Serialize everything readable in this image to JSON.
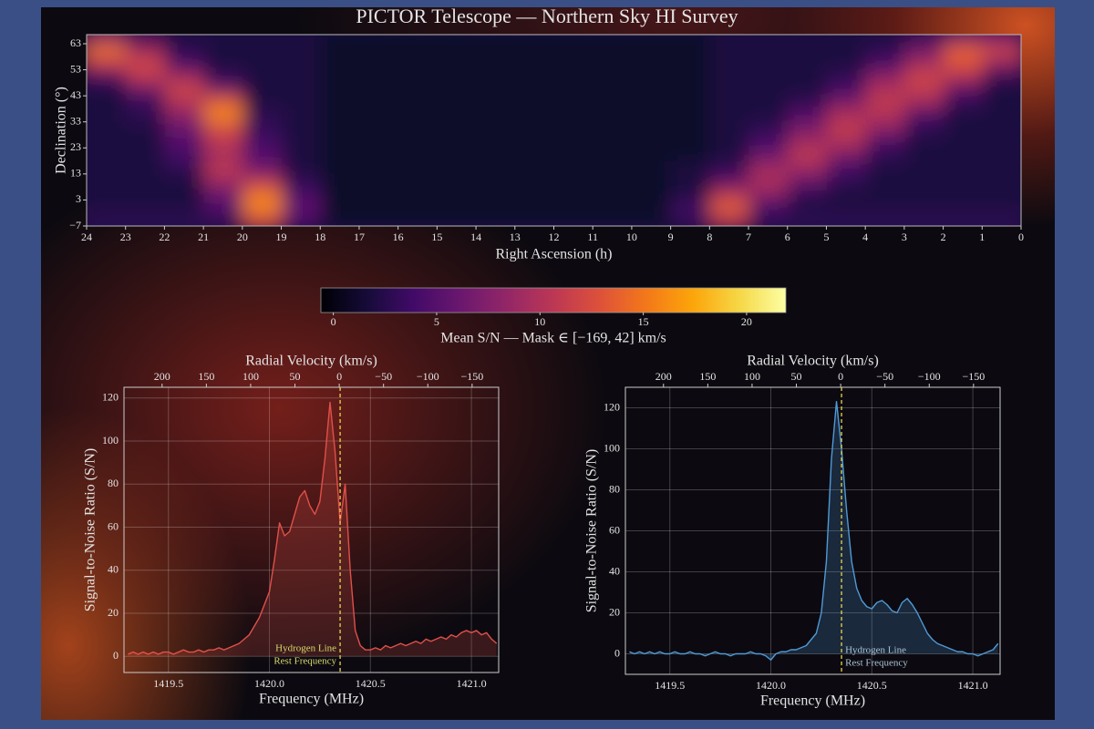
{
  "chart_data": [
    {
      "type": "heatmap",
      "title": "PICTOR Telescope — Northern Sky HI Survey",
      "x_label": "Right Ascension (h)",
      "y_label": "Declination (°)",
      "xlim": [
        24,
        0
      ],
      "xticks": [
        24,
        23,
        22,
        21,
        20,
        19,
        18,
        17,
        16,
        15,
        14,
        13,
        12,
        11,
        10,
        9,
        8,
        7,
        6,
        5,
        4,
        3,
        2,
        1,
        0
      ],
      "ylim": [
        -7,
        66.5
      ],
      "yticks": [
        {
          "value": -7,
          "label": "−7"
        },
        3,
        13,
        23,
        33,
        43,
        53,
        63
      ],
      "x": [
        0.5,
        1.5,
        2.5,
        3.5,
        4.5,
        5.5,
        6.5,
        7.5,
        8.5,
        9.5,
        10.5,
        11.5,
        12.5,
        13.5,
        14.5,
        15.5,
        16.5,
        17.5,
        18.5,
        19.5,
        20.5,
        21.5,
        22.5,
        23.5
      ],
      "y": [
        -4.5,
        0.5,
        5.5,
        10.5,
        15.5,
        20.5,
        25.5,
        30.5,
        35.5,
        40.5,
        45.5,
        50.5,
        55.5,
        60.5,
        65.5
      ],
      "values": [
        [
          3,
          3,
          3,
          3,
          3,
          3,
          3,
          10,
          3,
          1,
          1,
          1,
          1,
          1,
          1,
          1,
          1,
          1,
          4,
          12,
          3,
          3,
          3,
          3
        ],
        [
          2,
          2,
          2,
          2,
          2,
          2,
          4,
          14,
          4,
          1,
          1,
          1,
          1,
          1,
          1,
          1,
          1,
          1,
          6,
          16,
          5,
          2,
          2,
          2
        ],
        [
          2,
          2,
          2,
          2,
          2,
          3,
          8,
          10,
          2,
          1,
          1,
          1,
          1,
          1,
          1,
          1,
          1,
          1,
          4,
          15,
          6,
          2,
          2,
          2
        ],
        [
          2,
          2,
          2,
          2,
          3,
          6,
          10,
          5,
          2,
          1,
          1,
          1,
          1,
          1,
          1,
          1,
          1,
          1,
          3,
          10,
          9,
          2,
          2,
          2
        ],
        [
          2,
          2,
          2,
          2,
          4,
          9,
          9,
          3,
          2,
          1,
          1,
          1,
          1,
          1,
          1,
          1,
          1,
          1,
          2,
          6,
          11,
          3,
          2,
          2
        ],
        [
          2,
          2,
          2,
          3,
          7,
          11,
          6,
          2,
          1,
          1,
          1,
          1,
          1,
          1,
          1,
          1,
          1,
          1,
          2,
          5,
          9,
          4,
          2,
          2
        ],
        [
          2,
          2,
          2,
          4,
          10,
          9,
          4,
          2,
          1,
          1,
          1,
          1,
          1,
          1,
          1,
          1,
          1,
          1,
          2,
          4,
          11,
          5,
          2,
          2
        ],
        [
          2,
          2,
          3,
          8,
          11,
          7,
          3,
          2,
          1,
          1,
          1,
          1,
          1,
          1,
          1,
          1,
          1,
          1,
          2,
          3,
          12,
          6,
          2,
          2
        ],
        [
          2,
          2,
          4,
          10,
          10,
          5,
          2,
          2,
          1,
          1,
          1,
          1,
          1,
          1,
          1,
          1,
          1,
          1,
          2,
          3,
          16,
          8,
          3,
          2
        ],
        [
          2,
          3,
          9,
          11,
          7,
          3,
          2,
          2,
          1,
          1,
          1,
          1,
          1,
          1,
          1,
          1,
          1,
          1,
          2,
          2,
          14,
          10,
          3,
          2
        ],
        [
          2,
          5,
          11,
          10,
          4,
          2,
          2,
          2,
          1,
          1,
          1,
          1,
          1,
          1,
          1,
          1,
          1,
          1,
          2,
          2,
          6,
          12,
          6,
          2
        ],
        [
          3,
          10,
          12,
          8,
          3,
          2,
          2,
          2,
          1,
          1,
          1,
          1,
          1,
          1,
          1,
          1,
          1,
          1,
          2,
          2,
          3,
          9,
          11,
          4
        ],
        [
          8,
          13,
          9,
          4,
          2,
          2,
          2,
          2,
          1,
          1,
          1,
          1,
          1,
          1,
          1,
          1,
          1,
          1,
          2,
          2,
          2,
          4,
          12,
          11
        ],
        [
          12,
          14,
          7,
          3,
          2,
          2,
          2,
          2,
          1,
          1,
          1,
          1,
          1,
          1,
          1,
          1,
          1,
          1,
          2,
          2,
          2,
          3,
          9,
          15
        ],
        [
          6,
          6,
          3,
          2,
          2,
          2,
          2,
          2,
          1,
          1,
          1,
          1,
          1,
          1,
          1,
          1,
          1,
          1,
          2,
          2,
          2,
          2,
          3,
          7
        ]
      ],
      "colormap": "inferno",
      "colorbar": {
        "label": "Mean S/N — Mask ∈ [−169, 42] km/s",
        "lim": [
          -0.6,
          21.9
        ],
        "ticks": [
          0,
          5,
          10,
          15,
          20
        ]
      }
    },
    {
      "type": "line",
      "x_label": "Frequency (MHz)",
      "y_label": "Signal-to-Noise Ratio (S/N)",
      "x2_label": "Radial Velocity (km/s)",
      "xlim": [
        1419.28,
        1421.135
      ],
      "xticks": [
        1419.5,
        {
          "value": 1420,
          "label": "1420.0"
        },
        1420.5,
        {
          "value": 1421,
          "label": "1421.0"
        }
      ],
      "x2lim": [
        243,
        -180
      ],
      "x2ticks": [
        200,
        150,
        100,
        50,
        0,
        {
          "value": -50,
          "label": "−50"
        },
        {
          "value": -100,
          "label": "−100"
        },
        {
          "value": -150,
          "label": "−150"
        }
      ],
      "ylim": [
        -7.5,
        125
      ],
      "yticks": [
        0,
        20,
        40,
        60,
        80,
        100,
        120
      ],
      "grid": true,
      "fill": true,
      "color": "#e0504a",
      "x": [
        1419.3,
        1419.325,
        1419.35,
        1419.375,
        1419.4,
        1419.425,
        1419.45,
        1419.475,
        1419.5,
        1419.525,
        1419.55,
        1419.575,
        1419.6,
        1419.625,
        1419.65,
        1419.675,
        1419.7,
        1419.725,
        1419.75,
        1419.775,
        1419.8,
        1419.825,
        1419.85,
        1419.875,
        1419.9,
        1419.925,
        1419.95,
        1419.975,
        1420.0,
        1420.025,
        1420.05,
        1420.075,
        1420.1,
        1420.125,
        1420.15,
        1420.175,
        1420.2,
        1420.225,
        1420.25,
        1420.275,
        1420.3,
        1420.325,
        1420.35,
        1420.375,
        1420.4,
        1420.425,
        1420.45,
        1420.475,
        1420.5,
        1420.525,
        1420.55,
        1420.575,
        1420.6,
        1420.625,
        1420.65,
        1420.675,
        1420.7,
        1420.725,
        1420.75,
        1420.775,
        1420.8,
        1420.825,
        1420.85,
        1420.875,
        1420.9,
        1420.925,
        1420.95,
        1420.975,
        1421.0,
        1421.025,
        1421.05,
        1421.075,
        1421.1,
        1421.125
      ],
      "values": [
        1,
        2,
        1,
        2,
        1,
        2,
        1,
        2,
        2,
        1,
        2,
        3,
        2,
        2,
        3,
        2,
        3,
        3,
        4,
        3,
        4,
        5,
        6,
        8,
        10,
        14,
        18,
        24,
        30,
        45,
        62,
        56,
        58,
        66,
        74,
        77,
        70,
        66,
        72,
        92,
        118,
        95,
        62,
        80,
        40,
        12,
        5,
        3,
        3,
        4,
        3,
        5,
        4,
        5,
        6,
        5,
        6,
        7,
        6,
        8,
        7,
        8,
        9,
        8,
        10,
        9,
        11,
        12,
        11,
        12,
        10,
        11,
        8,
        6
      ],
      "annotation": {
        "text": [
          "Hydrogen Line",
          "Rest Frequency"
        ],
        "x": 1420.35,
        "side": "left",
        "color": "#d8d86a",
        "line_color": "#e8d44d"
      }
    },
    {
      "type": "line",
      "x_label": "Frequency (MHz)",
      "y_label": "Signal-to-Noise Ratio (S/N)",
      "x2_label": "Radial Velocity (km/s)",
      "xlim": [
        1419.28,
        1421.135
      ],
      "xticks": [
        1419.5,
        {
          "value": 1420,
          "label": "1420.0"
        },
        1420.5,
        {
          "value": 1421,
          "label": "1421.0"
        }
      ],
      "x2lim": [
        243,
        -180
      ],
      "x2ticks": [
        200,
        150,
        100,
        50,
        0,
        {
          "value": -50,
          "label": "−50"
        },
        {
          "value": -100,
          "label": "−100"
        },
        {
          "value": -150,
          "label": "−150"
        }
      ],
      "ylim": [
        -10,
        130
      ],
      "yticks": [
        0,
        20,
        40,
        60,
        80,
        100,
        120
      ],
      "grid": true,
      "fill": true,
      "color": "#4f9ad8",
      "x": [
        1419.3,
        1419.325,
        1419.35,
        1419.375,
        1419.4,
        1419.425,
        1419.45,
        1419.475,
        1419.5,
        1419.525,
        1419.55,
        1419.575,
        1419.6,
        1419.625,
        1419.65,
        1419.675,
        1419.7,
        1419.725,
        1419.75,
        1419.775,
        1419.8,
        1419.825,
        1419.85,
        1419.875,
        1419.9,
        1419.925,
        1419.95,
        1419.975,
        1420.0,
        1420.025,
        1420.05,
        1420.075,
        1420.1,
        1420.125,
        1420.15,
        1420.175,
        1420.2,
        1420.225,
        1420.25,
        1420.275,
        1420.3,
        1420.325,
        1420.35,
        1420.375,
        1420.4,
        1420.425,
        1420.45,
        1420.475,
        1420.5,
        1420.525,
        1420.55,
        1420.575,
        1420.6,
        1420.625,
        1420.65,
        1420.675,
        1420.7,
        1420.725,
        1420.75,
        1420.775,
        1420.8,
        1420.825,
        1420.85,
        1420.875,
        1420.9,
        1420.925,
        1420.95,
        1420.975,
        1421.0,
        1421.025,
        1421.05,
        1421.075,
        1421.1,
        1421.125
      ],
      "values": [
        1,
        0,
        1,
        0,
        1,
        0,
        1,
        0,
        0,
        1,
        0,
        0,
        1,
        0,
        0,
        -1,
        0,
        1,
        0,
        0,
        -1,
        0,
        0,
        0,
        1,
        0,
        0,
        -1,
        -3,
        0,
        1,
        1,
        2,
        2,
        3,
        4,
        7,
        10,
        20,
        45,
        95,
        123,
        100,
        70,
        45,
        32,
        26,
        23,
        22,
        25,
        26,
        24,
        21,
        20,
        25,
        27,
        24,
        20,
        15,
        10,
        7,
        5,
        4,
        3,
        2,
        1,
        1,
        0,
        0,
        -1,
        0,
        1,
        2,
        5
      ],
      "annotation": {
        "text": [
          "Hydrogen Line",
          "Rest Frequency"
        ],
        "x": 1420.35,
        "side": "right",
        "color": "#a9c2d4",
        "line_color": "#e8d44d"
      }
    }
  ]
}
